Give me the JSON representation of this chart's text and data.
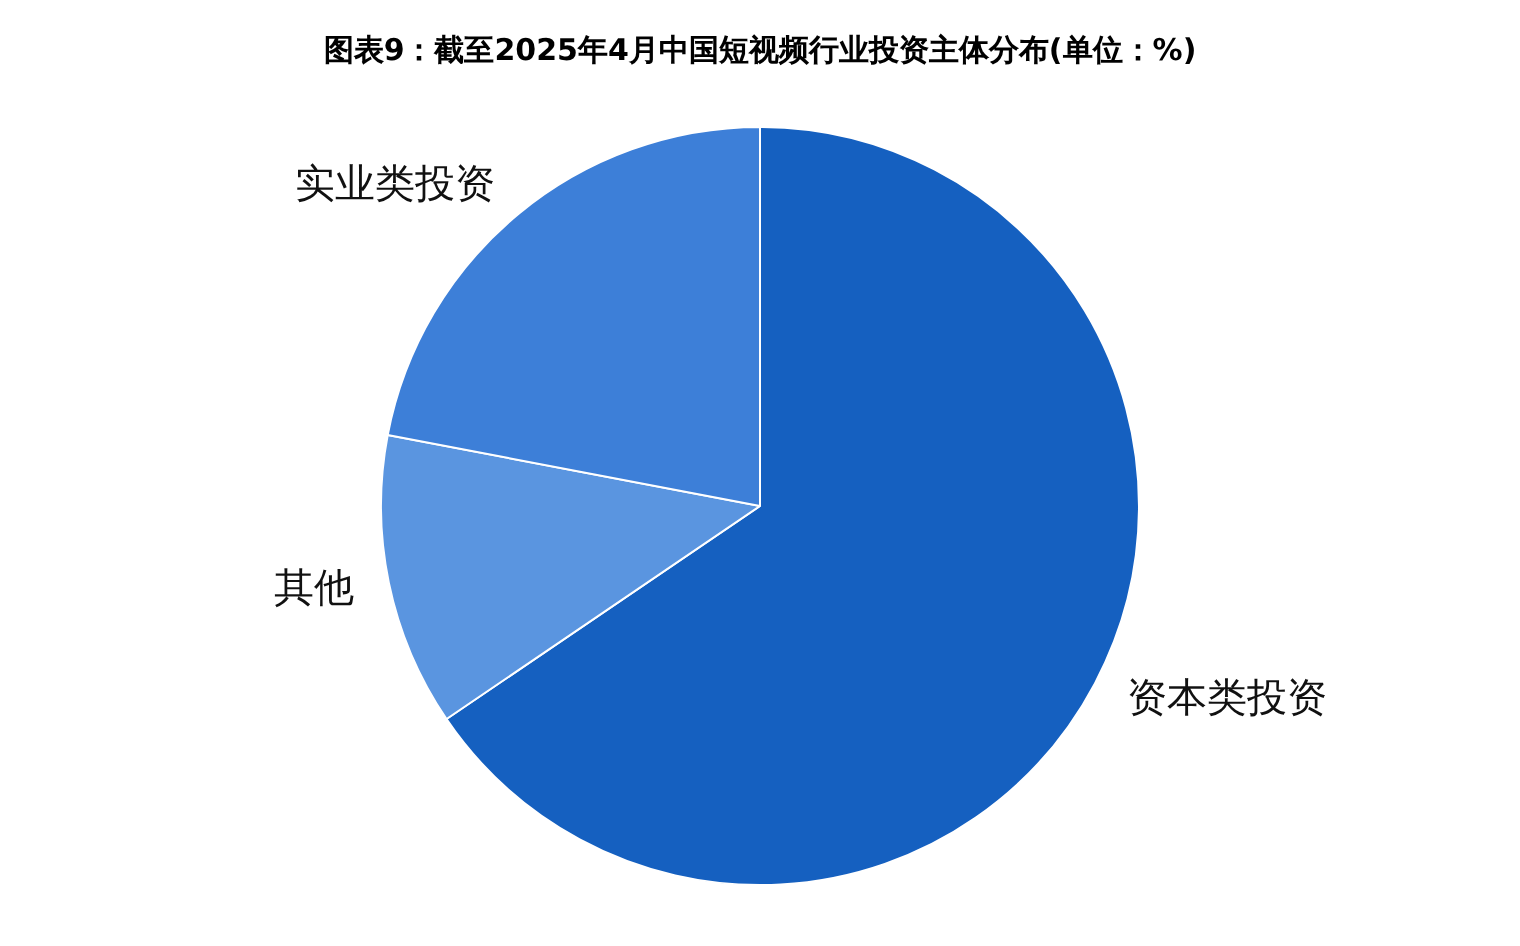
{
  "chart_data": {
    "type": "pie",
    "title": "图表9：截至2025年4月中国短视频行业投资主体分布(单位：%)",
    "categories": [
      "资本类投资",
      "其他",
      "实业类投资"
    ],
    "values": [
      65.5,
      12.5,
      22
    ],
    "colors": [
      "#1560c0",
      "#5a95e0",
      "#3d7fd8"
    ],
    "legend": false
  }
}
